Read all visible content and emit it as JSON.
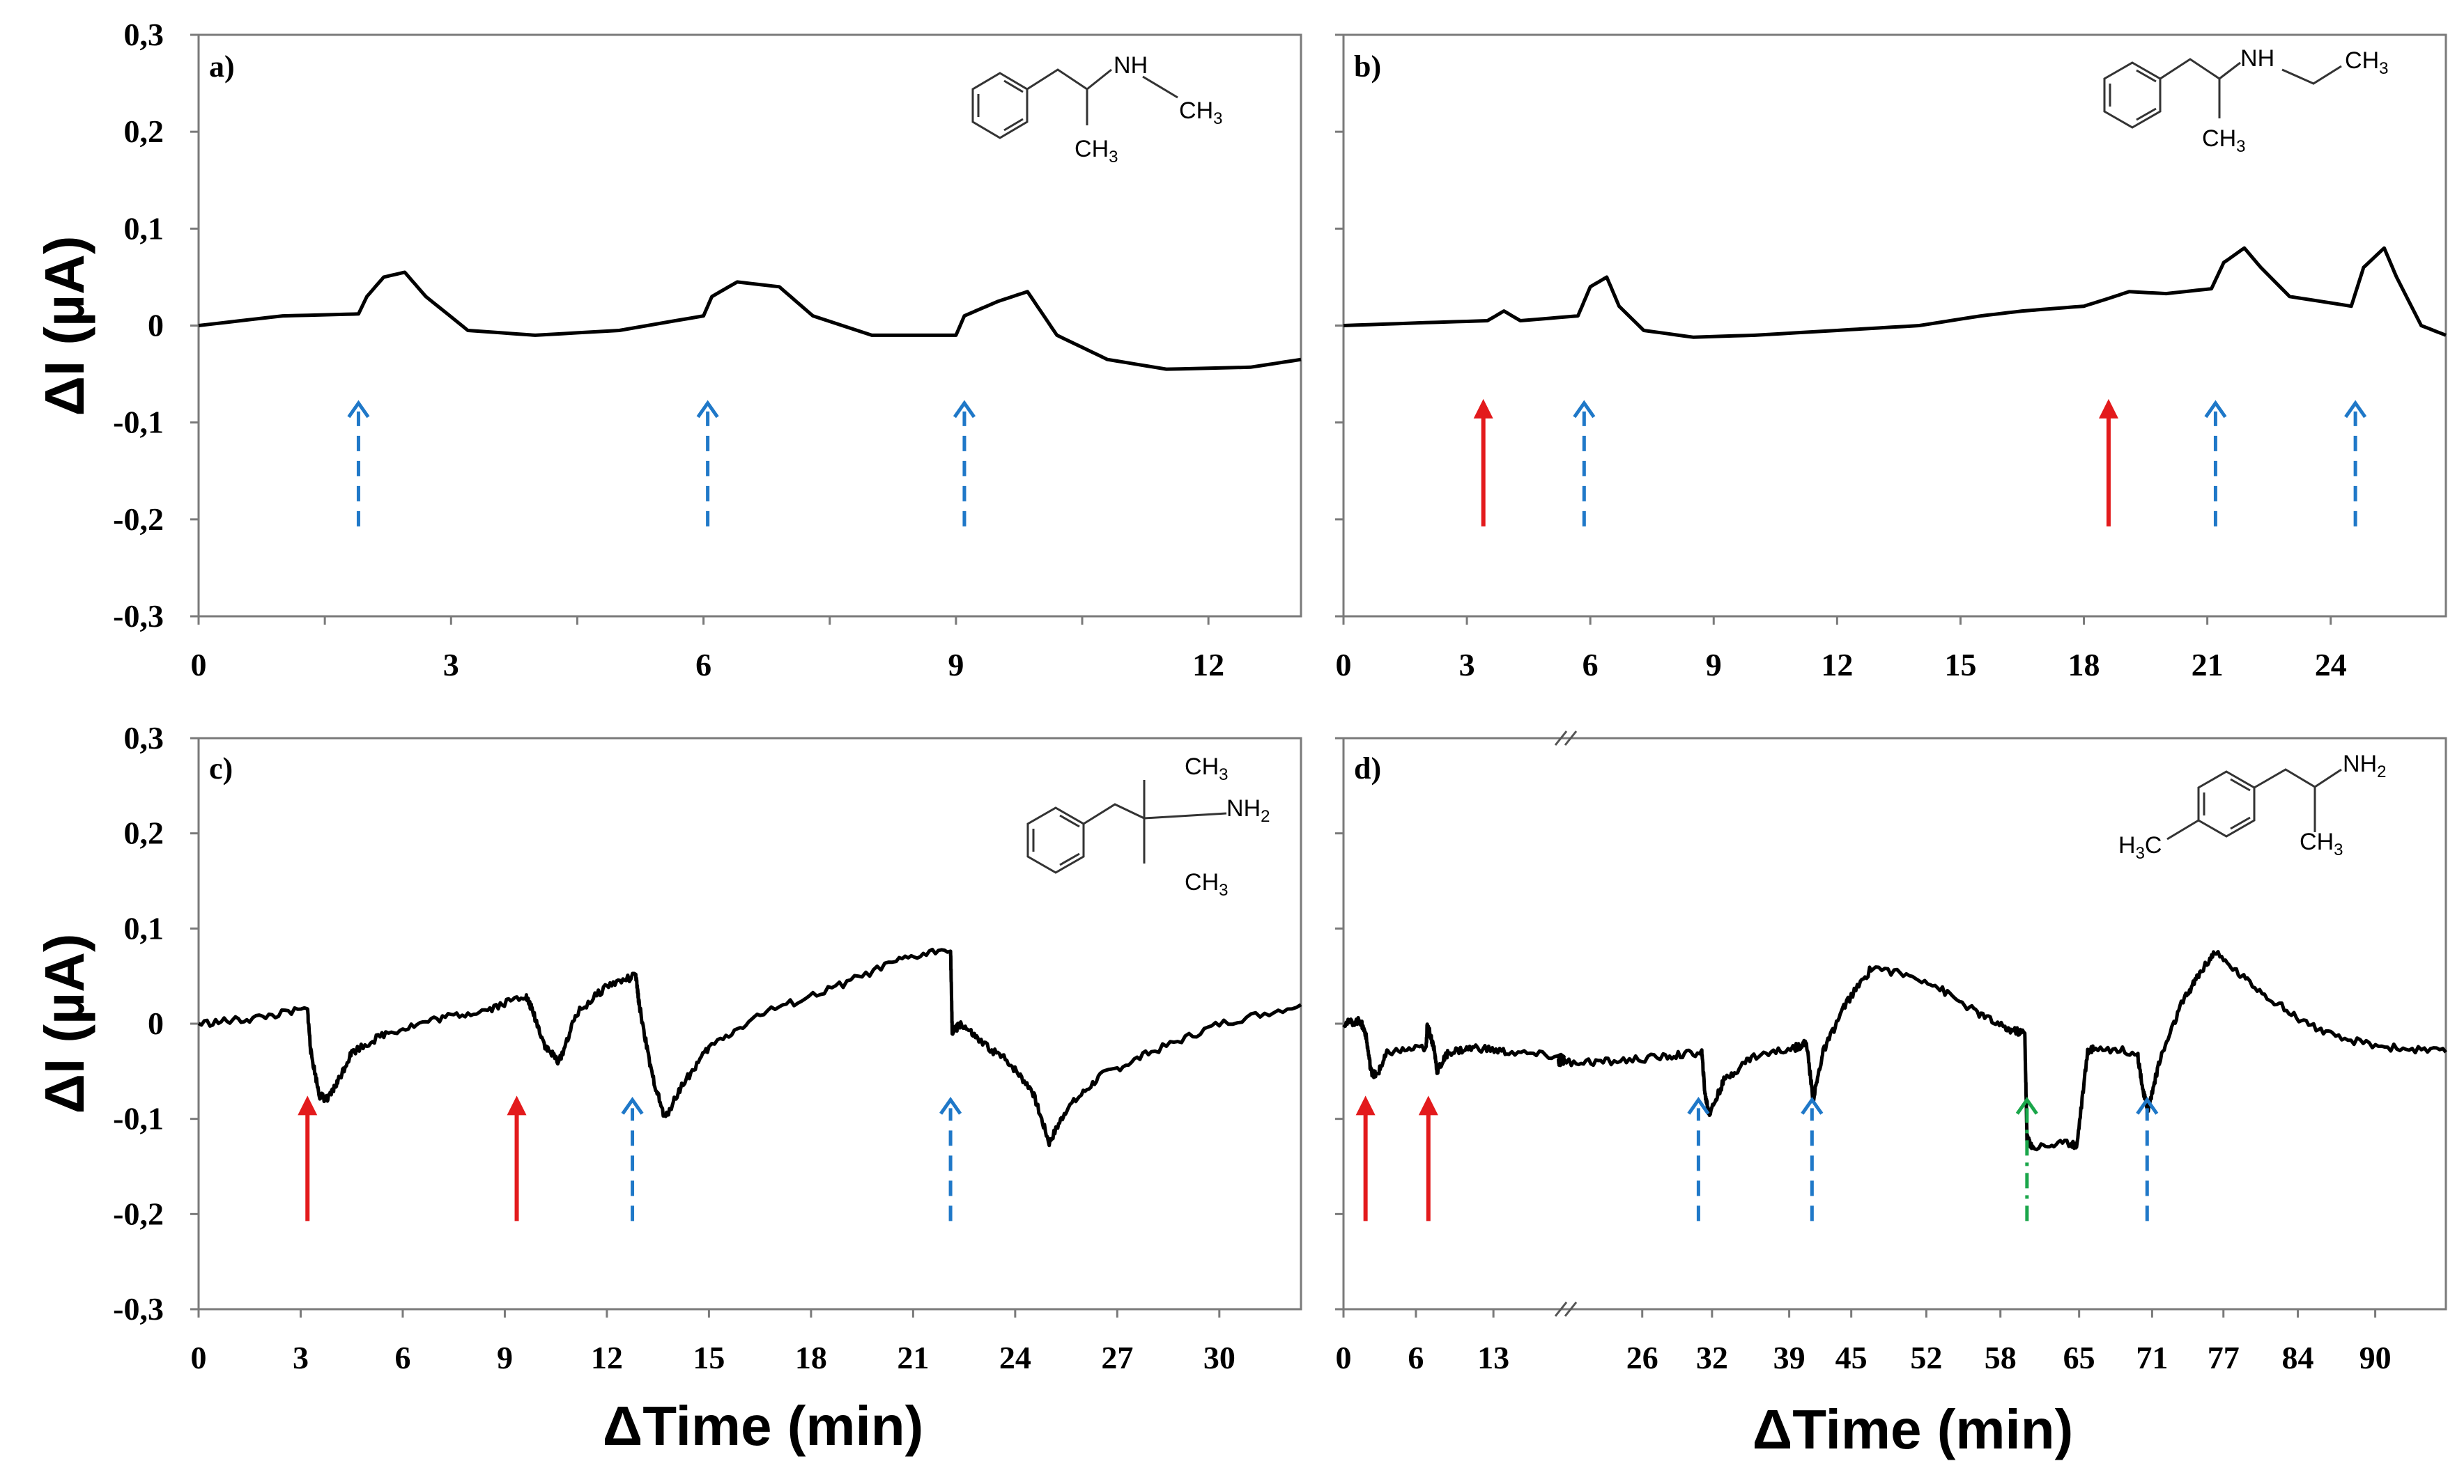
{
  "figure": {
    "y_axis_title": "ΔI (µA)",
    "x_axis_title": "ΔTime (min)",
    "colors": {
      "trace": "#000000",
      "red_arrow": "#e31a1c",
      "blue_arrow": "#1f78c8",
      "green_arrow": "#1aa64a",
      "frame": "#7a7a7a"
    }
  },
  "chart_data": [
    {
      "id": "a",
      "type": "line",
      "panel_label": "a)",
      "ylim": [
        -0.3,
        0.3
      ],
      "y_ticks": [
        "0,3",
        "0,2",
        "0,1",
        "0",
        "-0,1",
        "-0,2",
        "-0,3"
      ],
      "y_tick_values": [
        0.3,
        0.2,
        0.1,
        0,
        -0.1,
        -0.2,
        -0.3
      ],
      "xlim": [
        0,
        13.1
      ],
      "x_ticks": [
        "0",
        "3",
        "6",
        "9",
        "12"
      ],
      "x_tick_values": [
        0,
        3,
        6,
        9,
        12
      ],
      "x_minor_ticks": [
        1.5,
        4.5,
        7.5,
        10.5
      ],
      "x": [
        0,
        1.0,
        1.9,
        2.0,
        2.2,
        2.45,
        2.7,
        3.2,
        4.0,
        5.0,
        6.0,
        6.1,
        6.4,
        6.9,
        7.3,
        8.0,
        9.0,
        9.1,
        9.5,
        9.85,
        10.2,
        10.8,
        11.5,
        12.5,
        13.1
      ],
      "values": [
        0,
        0.01,
        0.012,
        0.03,
        0.05,
        0.055,
        0.03,
        -0.005,
        -0.01,
        -0.005,
        0.01,
        0.03,
        0.045,
        0.04,
        0.01,
        -0.01,
        -0.01,
        0.01,
        0.025,
        0.035,
        -0.01,
        -0.035,
        -0.045,
        -0.043,
        -0.035
      ],
      "arrows": [
        {
          "x": 1.9,
          "color": "blue",
          "style": "dashed"
        },
        {
          "x": 6.05,
          "color": "blue",
          "style": "dashed"
        },
        {
          "x": 9.1,
          "color": "blue",
          "style": "dashed"
        }
      ],
      "molecule": {
        "labels": [
          "NH",
          "CH3",
          "CH3"
        ]
      }
    },
    {
      "id": "b",
      "type": "line",
      "panel_label": "b)",
      "ylim": [
        -0.3,
        0.3
      ],
      "y_ticks": [
        "0,3",
        "0,2",
        "0,1",
        "0",
        "-0,1",
        "-0,2",
        "-0,3"
      ],
      "y_tick_values": [
        0.3,
        0.2,
        0.1,
        0,
        -0.1,
        -0.2,
        -0.3
      ],
      "xlim": [
        0,
        26.8
      ],
      "x_ticks": [
        "0",
        "3",
        "6",
        "9",
        "12",
        "15",
        "18",
        "21",
        "24"
      ],
      "x_tick_values": [
        0,
        3,
        6,
        9,
        12,
        15,
        18,
        21,
        24
      ],
      "x": [
        0,
        2.0,
        3.5,
        3.9,
        4.3,
        5.7,
        6.0,
        6.4,
        6.7,
        7.3,
        8.5,
        10.0,
        12.0,
        14.0,
        15.5,
        16.5,
        18.0,
        18.6,
        19.1,
        20.0,
        21.1,
        21.4,
        21.9,
        22.3,
        23.0,
        24.5,
        24.8,
        25.3,
        25.6,
        26.2,
        26.8
      ],
      "values": [
        0,
        0.003,
        0.005,
        0.015,
        0.005,
        0.01,
        0.04,
        0.05,
        0.02,
        -0.005,
        -0.012,
        -0.01,
        -0.005,
        0.0,
        0.01,
        0.015,
        0.02,
        0.028,
        0.035,
        0.033,
        0.038,
        0.065,
        0.08,
        0.06,
        0.03,
        0.02,
        0.06,
        0.08,
        0.05,
        0.0,
        -0.01
      ],
      "arrows": [
        {
          "x": 3.4,
          "color": "red",
          "style": "solid"
        },
        {
          "x": 5.85,
          "color": "blue",
          "style": "dashed"
        },
        {
          "x": 18.6,
          "color": "red",
          "style": "solid"
        },
        {
          "x": 21.2,
          "color": "blue",
          "style": "dashed"
        },
        {
          "x": 24.6,
          "color": "blue",
          "style": "dashed"
        }
      ],
      "molecule": {
        "labels": [
          "NH",
          "CH3",
          "CH3"
        ]
      }
    },
    {
      "id": "c",
      "type": "line",
      "panel_label": "c)",
      "ylim": [
        -0.3,
        0.3
      ],
      "y_ticks": [
        "0,3",
        "0,2",
        "0,1",
        "0",
        "-0,1",
        "-0,2",
        "-0,3"
      ],
      "y_tick_values": [
        0.3,
        0.2,
        0.1,
        0,
        -0.1,
        -0.2,
        -0.3
      ],
      "xlim": [
        0,
        32.4
      ],
      "x_ticks": [
        "0",
        "3",
        "6",
        "9",
        "12",
        "15",
        "18",
        "21",
        "24",
        "27",
        "30"
      ],
      "x_tick_values": [
        0,
        3,
        6,
        9,
        12,
        15,
        18,
        21,
        24,
        27,
        30
      ],
      "x": [
        0,
        1.5,
        3.2,
        3.3,
        3.55,
        3.8,
        4.1,
        4.5,
        5.5,
        7.0,
        8.5,
        9.6,
        9.8,
        10.2,
        10.6,
        11.1,
        12.0,
        12.85,
        12.95,
        13.3,
        13.7,
        14.2,
        15.0,
        16.5,
        18.5,
        20.5,
        22.1,
        22.15,
        22.4,
        23.0,
        23.8,
        24.5,
        25.0,
        25.5,
        26.5,
        28.0,
        30.0,
        32.4
      ],
      "values": [
        0,
        0.005,
        0.015,
        -0.03,
        -0.075,
        -0.08,
        -0.06,
        -0.03,
        -0.01,
        0.005,
        0.015,
        0.03,
        0.015,
        -0.025,
        -0.04,
        0.01,
        0.04,
        0.05,
        0.02,
        -0.05,
        -0.1,
        -0.065,
        -0.025,
        0.01,
        0.035,
        0.065,
        0.08,
        -0.01,
        0.0,
        -0.02,
        -0.04,
        -0.07,
        -0.125,
        -0.09,
        -0.055,
        -0.03,
        0.0,
        0.02
      ],
      "arrows": [
        {
          "x": 3.2,
          "color": "red",
          "style": "solid"
        },
        {
          "x": 9.35,
          "color": "red",
          "style": "solid"
        },
        {
          "x": 12.75,
          "color": "blue",
          "style": "dashed"
        },
        {
          "x": 22.1,
          "color": "blue",
          "style": "dashed"
        }
      ],
      "molecule": {
        "labels": [
          "CH3",
          "NH2",
          "CH3"
        ]
      }
    },
    {
      "id": "d",
      "type": "line",
      "panel_label": "d)",
      "ylim": [
        -0.3,
        0.3
      ],
      "y_ticks": [
        "0,3",
        "0,2",
        "0,1",
        "0",
        "-0,1",
        "-0,2",
        "-0,3"
      ],
      "y_tick_values": [
        0.3,
        0.2,
        0.1,
        0,
        -0.1,
        -0.2,
        -0.3
      ],
      "x_axis_break": true,
      "x_ticks": [
        "0",
        "6",
        "13",
        "26",
        "32",
        "39",
        "45",
        "52",
        "58",
        "65",
        "71",
        "77",
        "84",
        "90"
      ],
      "x_tick_positions": [
        0,
        0.0657,
        0.136,
        0.271,
        0.3343,
        0.4043,
        0.4606,
        0.5287,
        0.5959,
        0.6673,
        0.7335,
        0.7982,
        0.8657,
        0.9359
      ],
      "x": [
        0,
        0.015,
        0.02,
        0.025,
        0.03,
        0.04,
        0.075,
        0.076,
        0.082,
        0.085,
        0.095,
        0.12,
        0.15,
        0.2,
        0.195,
        0.2,
        0.24,
        0.29,
        0.325,
        0.328,
        0.332,
        0.345,
        0.37,
        0.41,
        0.42,
        0.426,
        0.435,
        0.455,
        0.48,
        0.53,
        0.57,
        0.6,
        0.618,
        0.62,
        0.625,
        0.66,
        0.665,
        0.675,
        0.68,
        0.72,
        0.726,
        0.73,
        0.74,
        0.76,
        0.775,
        0.79,
        0.82,
        0.86,
        0.9,
        0.95,
        1.0
      ],
      "values": [
        0,
        0.003,
        -0.01,
        -0.05,
        -0.055,
        -0.03,
        -0.025,
        0.0,
        -0.025,
        -0.05,
        -0.03,
        -0.025,
        -0.03,
        -0.035,
        -0.04,
        -0.04,
        -0.04,
        -0.035,
        -0.03,
        -0.075,
        -0.095,
        -0.06,
        -0.035,
        -0.025,
        -0.02,
        -0.08,
        -0.03,
        0.02,
        0.06,
        0.045,
        0.015,
        -0.005,
        -0.01,
        -0.12,
        -0.13,
        -0.125,
        -0.13,
        -0.03,
        -0.025,
        -0.03,
        -0.075,
        -0.09,
        -0.04,
        0.02,
        0.05,
        0.075,
        0.045,
        0.01,
        -0.015,
        -0.025,
        -0.03
      ],
      "arrows": [
        {
          "x": 0.02,
          "color": "red",
          "style": "solid"
        },
        {
          "x": 0.077,
          "color": "red",
          "style": "solid"
        },
        {
          "x": 0.322,
          "color": "blue",
          "style": "dashed"
        },
        {
          "x": 0.425,
          "color": "blue",
          "style": "dashed"
        },
        {
          "x": 0.62,
          "color": "green",
          "style": "dashdot"
        },
        {
          "x": 0.729,
          "color": "blue",
          "style": "dashed"
        }
      ],
      "molecule": {
        "labels": [
          "NH2",
          "CH3",
          "H3C"
        ]
      }
    }
  ]
}
